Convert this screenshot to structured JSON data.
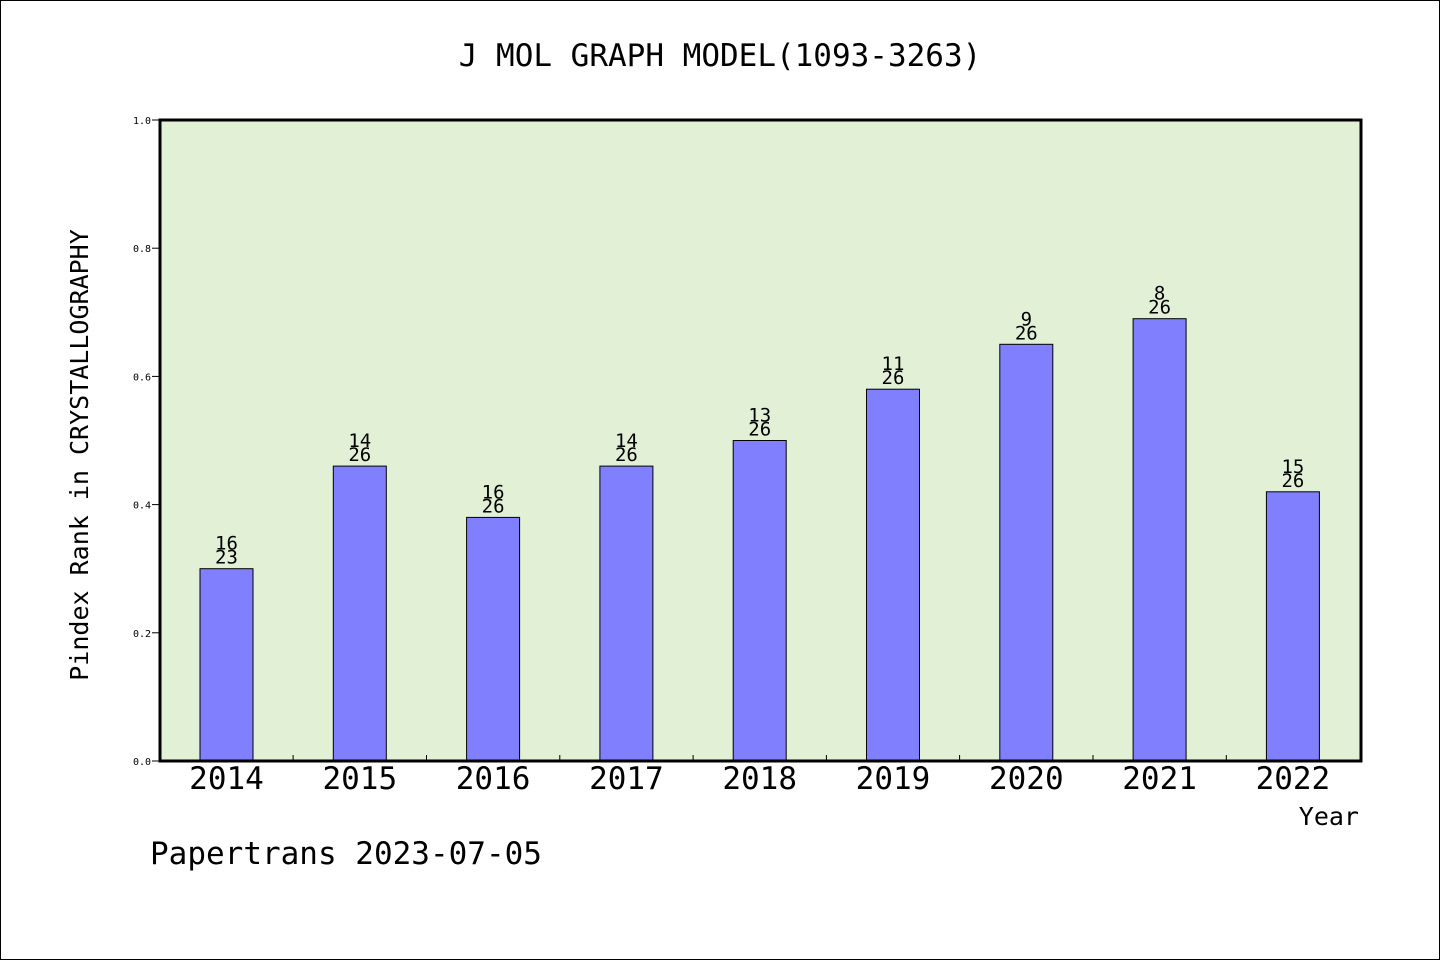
{
  "chart_data": {
    "type": "bar",
    "title": "J MOL GRAPH MODEL(1093-3263)",
    "xlabel": "Year",
    "ylabel": "Pindex Rank in CRYSTALLOGRAPHY",
    "categories": [
      "2014",
      "2015",
      "2016",
      "2017",
      "2018",
      "2019",
      "2020",
      "2021",
      "2022"
    ],
    "values": [
      0.3,
      0.46,
      0.38,
      0.46,
      0.5,
      0.58,
      0.65,
      0.69,
      0.42
    ],
    "rank": [
      "16",
      "14",
      "16",
      "14",
      "13",
      "11",
      "9",
      "8",
      "15"
    ],
    "total": [
      "23",
      "26",
      "26",
      "26",
      "26",
      "26",
      "26",
      "26",
      "26"
    ],
    "ylim": [
      0,
      1.0
    ],
    "yticks": [
      "0.0",
      "0.2",
      "0.4",
      "0.6",
      "0.8",
      "1.0"
    ],
    "grid": false,
    "colors": {
      "bar": "#8080ff",
      "plot_bg": "#e2f0d6",
      "axis": "#000000"
    }
  },
  "footer": {
    "text": "Papertrans 2023-07-05"
  }
}
